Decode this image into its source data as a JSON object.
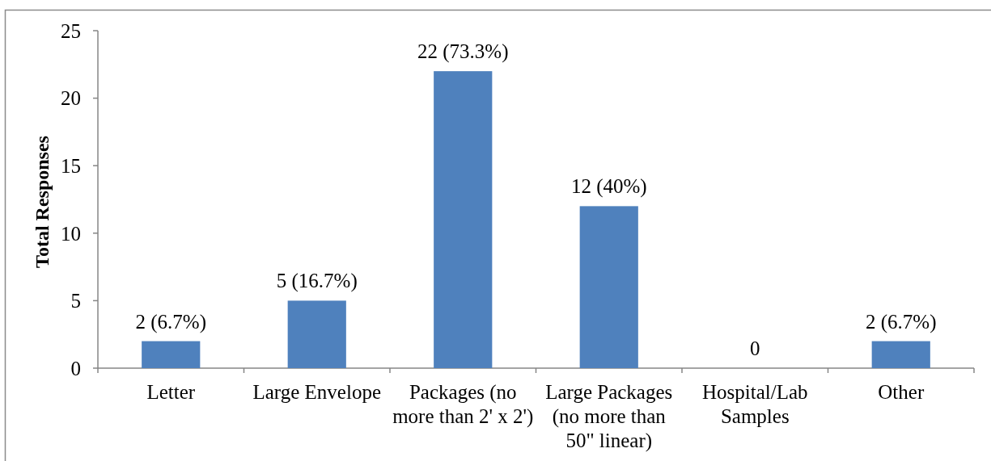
{
  "chart_data": {
    "type": "bar",
    "ylabel": "Total Responses",
    "categories": [
      "Letter",
      "Large Envelope",
      "Packages (no more than 2' x 2')",
      "Large Packages (no more than 50\" linear)",
      "Hospital/Lab Samples",
      "Other"
    ],
    "values": [
      2,
      5,
      22,
      12,
      0,
      2
    ],
    "color": "#4f81bd",
    "value_labels": [
      "2 (6.7%)",
      "5 (16.7%)",
      "22 (73.3%)",
      "12 (40%)",
      "0",
      "2 (6.7%)"
    ],
    "ylim": [
      0,
      25
    ],
    "yticks": [
      0,
      5,
      10,
      15,
      20,
      25
    ]
  }
}
